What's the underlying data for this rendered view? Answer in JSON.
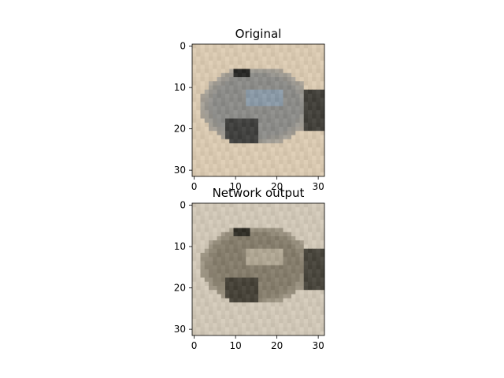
{
  "chart_data": [
    {
      "type": "image",
      "title": "Original",
      "image_size": [
        32,
        32
      ],
      "xlim": [
        -0.5,
        31.5
      ],
      "ylim": [
        31.5,
        -0.5
      ],
      "x_ticks": [
        0,
        10,
        20,
        30
      ],
      "y_ticks": [
        0,
        10,
        20,
        30
      ],
      "x_tick_labels": [
        "0",
        "10",
        "20",
        "30"
      ],
      "y_tick_labels": [
        "0",
        "10",
        "20",
        "30"
      ],
      "background_color": "#d8c8b0",
      "subject_color": "#8b8b88",
      "subject_shadow_color": "#2a2a28",
      "subject_highlight_color": "#8aa0b6"
    },
    {
      "type": "image",
      "title": "Network output",
      "image_size": [
        32,
        32
      ],
      "xlim": [
        -0.5,
        31.5
      ],
      "ylim": [
        31.5,
        -0.5
      ],
      "x_ticks": [
        0,
        10,
        20,
        30
      ],
      "y_ticks": [
        0,
        10,
        20,
        30
      ],
      "x_tick_labels": [
        "0",
        "10",
        "20",
        "30"
      ],
      "y_tick_labels": [
        "0",
        "10",
        "20",
        "30"
      ],
      "background_color": "#cfc6b6",
      "subject_color": "#857d6c",
      "subject_shadow_color": "#333129",
      "subject_highlight_color": "#c6bca8"
    }
  ]
}
